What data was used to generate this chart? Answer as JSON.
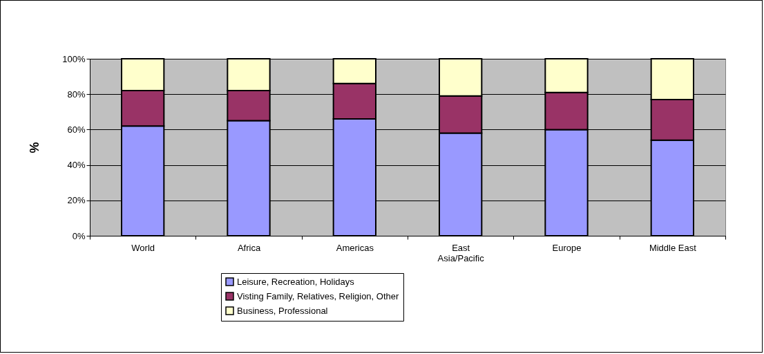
{
  "chart_data": {
    "type": "bar",
    "stacked": true,
    "ylabel": "%",
    "categories": [
      "World",
      "Africa",
      "Americas",
      "East Asia/Pacific",
      "Europe",
      "Middle East"
    ],
    "series": [
      {
        "name": "Leisure, Recreation, Holidays",
        "color": "#9999ff",
        "values": [
          62,
          65,
          66,
          58,
          60,
          54
        ]
      },
      {
        "name": "Visting Family, Relatives, Religion, Other",
        "color": "#993366",
        "values": [
          20,
          17,
          20,
          21,
          21,
          23
        ]
      },
      {
        "name": "Business, Professional",
        "color": "#ffffcc",
        "values": [
          18,
          18,
          14,
          21,
          19,
          23
        ]
      }
    ],
    "ylim": [
      0,
      100
    ],
    "yticks": [
      {
        "value": 0,
        "label": "0%"
      },
      {
        "value": 20,
        "label": "20%"
      },
      {
        "value": 40,
        "label": "40%"
      },
      {
        "value": 60,
        "label": "60%"
      },
      {
        "value": 80,
        "label": "80%"
      },
      {
        "value": 100,
        "label": "100%"
      }
    ],
    "grid": "y",
    "legend": "bottom"
  }
}
